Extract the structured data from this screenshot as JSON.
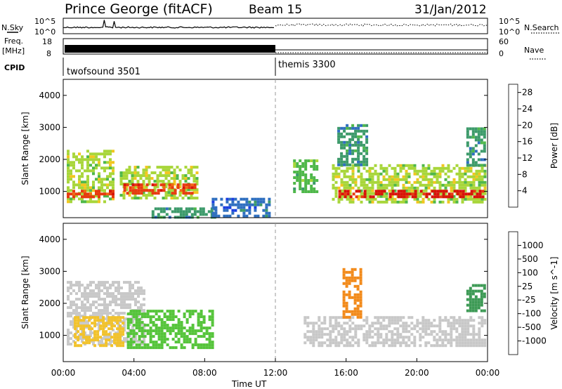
{
  "header": {
    "station": "Prince George (fitACF)",
    "beam": "Beam 15",
    "date": "31/Jan/2012"
  },
  "strips": {
    "nsky_label": "N.Sky",
    "nsearch_label": "N.Search",
    "freq_label_top": "Freq.",
    "freq_label_unit": "[MHz]",
    "nave_label": "Nave",
    "cpid_label": "CPID",
    "noise_left_ticks": [
      "10^5",
      "10^0"
    ],
    "noise_right_ticks": [
      "10^5",
      "10^0"
    ],
    "freq_ticks": [
      "18",
      "8"
    ],
    "nave_ticks": [
      "60",
      "0"
    ],
    "cpid_segments": [
      {
        "label": "twofsound 3501",
        "start_hour": 0
      },
      {
        "label": "themis 3300",
        "start_hour": 12
      }
    ]
  },
  "chart_data": [
    {
      "type": "heatmap",
      "title": "",
      "xlabel": "Time UT",
      "ylabel": "Slant Range [km]",
      "xlim": [
        0,
        24
      ],
      "ylim": [
        180,
        4500
      ],
      "x_ticks": [
        "00:00",
        "04:00",
        "08:00",
        "12:00",
        "16:00",
        "20:00",
        "00:00"
      ],
      "y_ticks": [
        1000,
        2000,
        3000,
        4000
      ],
      "colorbar": {
        "label": "Power [dB]",
        "ticks": [
          4,
          8,
          12,
          16,
          20,
          24,
          28
        ],
        "range": [
          0,
          30
        ],
        "colors": [
          "#1a3fe0",
          "#2f6fc0",
          "#3c9a6a",
          "#4fb84a",
          "#a8d63a",
          "#f2c61f",
          "#f29a1a",
          "#f06a12",
          "#e83a10",
          "#d8120a"
        ]
      },
      "regions": [
        {
          "t0": 0.2,
          "t1": 2.8,
          "r0": 700,
          "r1": 2300,
          "level": 12
        },
        {
          "t0": 0.2,
          "t1": 2.8,
          "r0": 850,
          "r1": 1050,
          "level": 26
        },
        {
          "t0": 3.2,
          "t1": 7.6,
          "r0": 800,
          "r1": 1800,
          "level": 14
        },
        {
          "t0": 3.4,
          "t1": 7.4,
          "r0": 900,
          "r1": 1250,
          "level": 26
        },
        {
          "t0": 5.0,
          "t1": 8.6,
          "r0": 200,
          "r1": 500,
          "level": 6
        },
        {
          "t0": 8.4,
          "t1": 11.6,
          "r0": 200,
          "r1": 800,
          "level": 4
        },
        {
          "t0": 13.0,
          "t1": 14.4,
          "r0": 1000,
          "r1": 2000,
          "level": 10
        },
        {
          "t0": 15.2,
          "t1": 23.9,
          "r0": 650,
          "r1": 1850,
          "level": 14
        },
        {
          "t0": 15.4,
          "t1": 23.9,
          "r0": 800,
          "r1": 1050,
          "level": 27
        },
        {
          "t0": 15.5,
          "t1": 17.2,
          "r0": 1800,
          "r1": 3100,
          "level": 8
        },
        {
          "t0": 22.8,
          "t1": 23.9,
          "r0": 1800,
          "r1": 3000,
          "level": 8
        }
      ]
    },
    {
      "type": "heatmap",
      "title": "",
      "xlabel": "Time UT",
      "ylabel": "Slant Range [km]",
      "xlim": [
        0,
        24
      ],
      "ylim": [
        180,
        4500
      ],
      "x_ticks": [
        "00:00",
        "04:00",
        "08:00",
        "12:00",
        "16:00",
        "20:00",
        "00:00"
      ],
      "y_ticks": [
        1000,
        2000,
        3000,
        4000
      ],
      "colorbar": {
        "label": "Velocity [m s^-1]",
        "ticks": [
          "1000",
          "500",
          "100",
          "25",
          "-25",
          "-100",
          "-500",
          "-1000"
        ],
        "colors": [
          "#1a3fd8",
          "#2e6fb0",
          "#3d9a55",
          "#55c43a",
          "#c8c8c8",
          "#f2c22a",
          "#f28a1a",
          "#f0560f",
          "#e0100a"
        ]
      },
      "regions": [
        {
          "t0": 0.2,
          "t1": 4.6,
          "r0": 700,
          "r1": 2700,
          "level": "-25",
          "color": "#c8c8c8"
        },
        {
          "t0": 0.6,
          "t1": 3.4,
          "r0": 700,
          "r1": 1600,
          "level": "-100",
          "color": "#f2c22a"
        },
        {
          "t0": 3.6,
          "t1": 8.4,
          "r0": 600,
          "r1": 1800,
          "level": "100",
          "color": "#55c43a"
        },
        {
          "t0": 13.6,
          "t1": 23.9,
          "r0": 650,
          "r1": 1600,
          "level": "-25",
          "color": "#c8c8c8"
        },
        {
          "t0": 15.8,
          "t1": 16.8,
          "r0": 1600,
          "r1": 3100,
          "level": "-500",
          "color": "#f28a1a"
        },
        {
          "t0": 22.8,
          "t1": 23.9,
          "r0": 1800,
          "r1": 2600,
          "level": "100",
          "color": "#3d9a55"
        }
      ]
    }
  ]
}
